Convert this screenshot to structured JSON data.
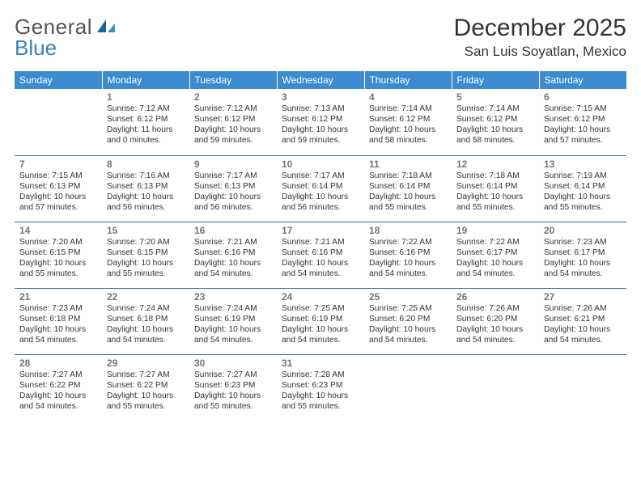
{
  "logo": {
    "text1": "General",
    "text2": "Blue"
  },
  "title": "December 2025",
  "location": "San Luis Soyatlan, Mexico",
  "colors": {
    "header_bg": "#3a8bd0",
    "header_text": "#ffffff",
    "row_divider": "#2f6aa0",
    "daynum": "#757575",
    "body_text": "#333333",
    "logo_blue": "#3a7fbf"
  },
  "weekdays": [
    "Sunday",
    "Monday",
    "Tuesday",
    "Wednesday",
    "Thursday",
    "Friday",
    "Saturday"
  ],
  "weeks": [
    [
      null,
      {
        "n": "1",
        "sunrise": "Sunrise: 7:12 AM",
        "sunset": "Sunset: 6:12 PM",
        "daylight": "Daylight: 11 hours and 0 minutes."
      },
      {
        "n": "2",
        "sunrise": "Sunrise: 7:12 AM",
        "sunset": "Sunset: 6:12 PM",
        "daylight": "Daylight: 10 hours and 59 minutes."
      },
      {
        "n": "3",
        "sunrise": "Sunrise: 7:13 AM",
        "sunset": "Sunset: 6:12 PM",
        "daylight": "Daylight: 10 hours and 59 minutes."
      },
      {
        "n": "4",
        "sunrise": "Sunrise: 7:14 AM",
        "sunset": "Sunset: 6:12 PM",
        "daylight": "Daylight: 10 hours and 58 minutes."
      },
      {
        "n": "5",
        "sunrise": "Sunrise: 7:14 AM",
        "sunset": "Sunset: 6:12 PM",
        "daylight": "Daylight: 10 hours and 58 minutes."
      },
      {
        "n": "6",
        "sunrise": "Sunrise: 7:15 AM",
        "sunset": "Sunset: 6:12 PM",
        "daylight": "Daylight: 10 hours and 57 minutes."
      }
    ],
    [
      {
        "n": "7",
        "sunrise": "Sunrise: 7:15 AM",
        "sunset": "Sunset: 6:13 PM",
        "daylight": "Daylight: 10 hours and 57 minutes."
      },
      {
        "n": "8",
        "sunrise": "Sunrise: 7:16 AM",
        "sunset": "Sunset: 6:13 PM",
        "daylight": "Daylight: 10 hours and 56 minutes."
      },
      {
        "n": "9",
        "sunrise": "Sunrise: 7:17 AM",
        "sunset": "Sunset: 6:13 PM",
        "daylight": "Daylight: 10 hours and 56 minutes."
      },
      {
        "n": "10",
        "sunrise": "Sunrise: 7:17 AM",
        "sunset": "Sunset: 6:14 PM",
        "daylight": "Daylight: 10 hours and 56 minutes."
      },
      {
        "n": "11",
        "sunrise": "Sunrise: 7:18 AM",
        "sunset": "Sunset: 6:14 PM",
        "daylight": "Daylight: 10 hours and 55 minutes."
      },
      {
        "n": "12",
        "sunrise": "Sunrise: 7:18 AM",
        "sunset": "Sunset: 6:14 PM",
        "daylight": "Daylight: 10 hours and 55 minutes."
      },
      {
        "n": "13",
        "sunrise": "Sunrise: 7:19 AM",
        "sunset": "Sunset: 6:14 PM",
        "daylight": "Daylight: 10 hours and 55 minutes."
      }
    ],
    [
      {
        "n": "14",
        "sunrise": "Sunrise: 7:20 AM",
        "sunset": "Sunset: 6:15 PM",
        "daylight": "Daylight: 10 hours and 55 minutes."
      },
      {
        "n": "15",
        "sunrise": "Sunrise: 7:20 AM",
        "sunset": "Sunset: 6:15 PM",
        "daylight": "Daylight: 10 hours and 55 minutes."
      },
      {
        "n": "16",
        "sunrise": "Sunrise: 7:21 AM",
        "sunset": "Sunset: 6:16 PM",
        "daylight": "Daylight: 10 hours and 54 minutes."
      },
      {
        "n": "17",
        "sunrise": "Sunrise: 7:21 AM",
        "sunset": "Sunset: 6:16 PM",
        "daylight": "Daylight: 10 hours and 54 minutes."
      },
      {
        "n": "18",
        "sunrise": "Sunrise: 7:22 AM",
        "sunset": "Sunset: 6:16 PM",
        "daylight": "Daylight: 10 hours and 54 minutes."
      },
      {
        "n": "19",
        "sunrise": "Sunrise: 7:22 AM",
        "sunset": "Sunset: 6:17 PM",
        "daylight": "Daylight: 10 hours and 54 minutes."
      },
      {
        "n": "20",
        "sunrise": "Sunrise: 7:23 AM",
        "sunset": "Sunset: 6:17 PM",
        "daylight": "Daylight: 10 hours and 54 minutes."
      }
    ],
    [
      {
        "n": "21",
        "sunrise": "Sunrise: 7:23 AM",
        "sunset": "Sunset: 6:18 PM",
        "daylight": "Daylight: 10 hours and 54 minutes."
      },
      {
        "n": "22",
        "sunrise": "Sunrise: 7:24 AM",
        "sunset": "Sunset: 6:18 PM",
        "daylight": "Daylight: 10 hours and 54 minutes."
      },
      {
        "n": "23",
        "sunrise": "Sunrise: 7:24 AM",
        "sunset": "Sunset: 6:19 PM",
        "daylight": "Daylight: 10 hours and 54 minutes."
      },
      {
        "n": "24",
        "sunrise": "Sunrise: 7:25 AM",
        "sunset": "Sunset: 6:19 PM",
        "daylight": "Daylight: 10 hours and 54 minutes."
      },
      {
        "n": "25",
        "sunrise": "Sunrise: 7:25 AM",
        "sunset": "Sunset: 6:20 PM",
        "daylight": "Daylight: 10 hours and 54 minutes."
      },
      {
        "n": "26",
        "sunrise": "Sunrise: 7:26 AM",
        "sunset": "Sunset: 6:20 PM",
        "daylight": "Daylight: 10 hours and 54 minutes."
      },
      {
        "n": "27",
        "sunrise": "Sunrise: 7:26 AM",
        "sunset": "Sunset: 6:21 PM",
        "daylight": "Daylight: 10 hours and 54 minutes."
      }
    ],
    [
      {
        "n": "28",
        "sunrise": "Sunrise: 7:27 AM",
        "sunset": "Sunset: 6:22 PM",
        "daylight": "Daylight: 10 hours and 54 minutes."
      },
      {
        "n": "29",
        "sunrise": "Sunrise: 7:27 AM",
        "sunset": "Sunset: 6:22 PM",
        "daylight": "Daylight: 10 hours and 55 minutes."
      },
      {
        "n": "30",
        "sunrise": "Sunrise: 7:27 AM",
        "sunset": "Sunset: 6:23 PM",
        "daylight": "Daylight: 10 hours and 55 minutes."
      },
      {
        "n": "31",
        "sunrise": "Sunrise: 7:28 AM",
        "sunset": "Sunset: 6:23 PM",
        "daylight": "Daylight: 10 hours and 55 minutes."
      },
      null,
      null,
      null
    ]
  ]
}
